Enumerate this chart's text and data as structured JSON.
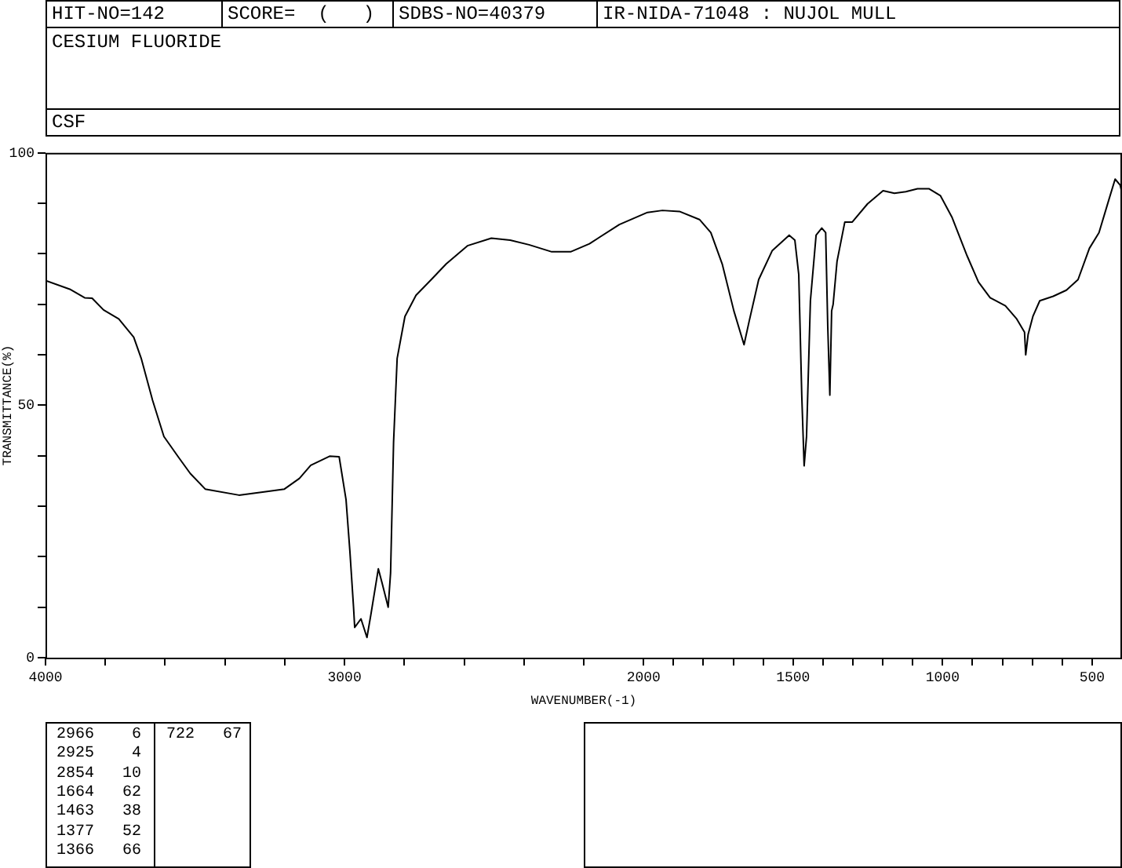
{
  "chart_data": {
    "type": "line",
    "title": "CESIUM FLUORIDE",
    "subtitle": "CSF",
    "xlabel": "WAVENUMBER(-1)",
    "ylabel": "TRANSMITTANCE(%)",
    "annotations": [
      "HIT-NO=142",
      "SCORE=  (   )",
      "SDBS-NO=40379",
      "IR-NIDA-71048 : NUJOL MULL",
      "2966    6",
      "2925    4",
      "2854   10",
      "1664   62",
      "1463   38",
      "1377   52",
      "1366   66",
      "722   67"
    ],
    "xlim": [
      4000,
      400
    ],
    "xticks": [
      4000,
      {
        "value": 3800,
        "label": null
      },
      {
        "value": 3600,
        "label": null
      },
      {
        "value": 3400,
        "label": null
      },
      {
        "value": 3200,
        "label": null
      },
      3000,
      {
        "value": 2800,
        "label": null
      },
      {
        "value": 2600,
        "label": null
      },
      {
        "value": 2400,
        "label": null
      },
      {
        "value": 2200,
        "label": null
      },
      2000,
      {
        "value": 1900,
        "label": null
      },
      {
        "value": 1800,
        "label": null
      },
      {
        "value": 1700,
        "label": null
      },
      {
        "value": 1600,
        "label": null
      },
      1500,
      {
        "value": 1400,
        "label": null
      },
      {
        "value": 1300,
        "label": null
      },
      {
        "value": 1200,
        "label": null
      },
      {
        "value": 1100,
        "label": null
      },
      1000,
      {
        "value": 900,
        "label": null
      },
      {
        "value": 800,
        "label": null
      },
      {
        "value": 700,
        "label": null
      },
      {
        "value": 600,
        "label": null
      },
      500
    ],
    "ylim": [
      0,
      100
    ],
    "yticks": [
      0,
      {
        "value": 10,
        "label": null
      },
      {
        "value": 20,
        "label": null
      },
      {
        "value": 30,
        "label": null
      },
      {
        "value": 40,
        "label": null
      },
      50,
      {
        "value": 60,
        "label": null
      },
      {
        "value": 70,
        "label": null
      },
      {
        "value": 80,
        "label": null
      },
      {
        "value": 90,
        "label": null
      },
      100
    ],
    "grid": false,
    "legend": false,
    "x": [
      4000,
      3919,
      3869,
      3844,
      3806,
      3755,
      3705,
      3680,
      3642,
      3604,
      3554,
      3516,
      3466,
      3353,
      3264,
      3201,
      3151,
      3113,
      3050,
      3018,
      2995,
      2982,
      2970,
      2966,
      2945,
      2925,
      2912,
      2887,
      2874,
      2854,
      2846,
      2836,
      2824,
      2798,
      2761,
      2710,
      2660,
      2589,
      2509,
      2446,
      2383,
      2307,
      2244,
      2181,
      2081,
      1987,
      1937,
      1880,
      1813,
      1775,
      1737,
      1698,
      1664,
      1647,
      1615,
      1570,
      1513,
      1494,
      1481,
      1471,
      1463,
      1455,
      1442,
      1423,
      1404,
      1391,
      1384,
      1377,
      1371,
      1366,
      1353,
      1327,
      1302,
      1251,
      1199,
      1161,
      1123,
      1084,
      1046,
      1007,
      969,
      918,
      880,
      841,
      790,
      752,
      726,
      722,
      714,
      698,
      675,
      630,
      586,
      547,
      509,
      477,
      445,
      423,
      406,
      400
    ],
    "values": [
      74.7,
      73.0,
      71.3,
      71.2,
      68.9,
      67.1,
      63.5,
      59.3,
      51.0,
      43.8,
      39.6,
      36.5,
      33.4,
      32.2,
      32.9,
      33.4,
      35.5,
      38.1,
      39.9,
      39.8,
      31.3,
      21.0,
      10.1,
      6,
      7.7,
      4,
      8.5,
      17.6,
      14.7,
      10,
      16.8,
      42.7,
      59.3,
      67.6,
      71.8,
      74.9,
      78.0,
      81.6,
      83.1,
      82.7,
      81.8,
      80.4,
      80.4,
      82.0,
      85.8,
      88.2,
      88.6,
      88.4,
      86.8,
      84.2,
      78.0,
      68.7,
      62,
      66.6,
      74.9,
      80.6,
      83.7,
      82.7,
      75.9,
      52.1,
      38,
      43.8,
      70.7,
      83.7,
      85.1,
      84.2,
      65.6,
      52,
      68.7,
      70,
      78.5,
      86.3,
      86.3,
      89.9,
      92.5,
      92.0,
      92.3,
      92.9,
      92.9,
      91.5,
      87.3,
      79.6,
      74.4,
      71.3,
      69.7,
      67.1,
      64.5,
      60,
      64,
      67.6,
      70.7,
      71.6,
      72.8,
      74.9,
      81.1,
      84.2,
      90.5,
      94.8,
      93.6,
      92
    ],
    "color": "#000000"
  }
}
